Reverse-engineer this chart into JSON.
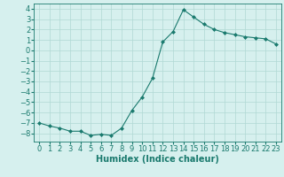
{
  "x": [
    0,
    1,
    2,
    3,
    4,
    5,
    6,
    7,
    8,
    9,
    10,
    11,
    12,
    13,
    14,
    15,
    16,
    17,
    18,
    19,
    20,
    21,
    22,
    23
  ],
  "y": [
    -7.0,
    -7.3,
    -7.5,
    -7.8,
    -7.8,
    -8.2,
    -8.1,
    -8.2,
    -7.5,
    -5.8,
    -4.5,
    -2.7,
    0.8,
    1.8,
    3.9,
    3.2,
    2.5,
    2.0,
    1.7,
    1.5,
    1.3,
    1.2,
    1.1,
    0.6
  ],
  "xlabel": "Humidex (Indice chaleur)",
  "ylim": [
    -8.8,
    4.5
  ],
  "xlim": [
    -0.5,
    23.5
  ],
  "yticks": [
    -8,
    -7,
    -6,
    -5,
    -4,
    -3,
    -2,
    -1,
    0,
    1,
    2,
    3,
    4
  ],
  "xticks": [
    0,
    1,
    2,
    3,
    4,
    5,
    6,
    7,
    8,
    9,
    10,
    11,
    12,
    13,
    14,
    15,
    16,
    17,
    18,
    19,
    20,
    21,
    22,
    23
  ],
  "line_color": "#1a7a6e",
  "marker_color": "#1a7a6e",
  "bg_color": "#d6f0ee",
  "grid_color": "#b0d8d4",
  "xlabel_fontsize": 7,
  "tick_fontsize": 6
}
